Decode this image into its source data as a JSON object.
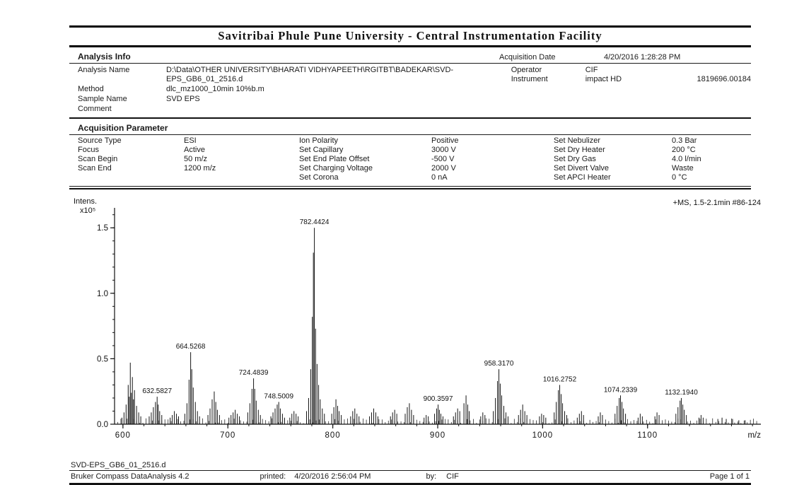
{
  "report": {
    "title": "Savitribai Phule Pune University - Central Instrumentation Facility"
  },
  "analysis_info": {
    "heading": "Analysis Info",
    "acquisition_date_label": "Acquisition Date",
    "acquisition_date_value": "4/20/2016 1:28:28 PM",
    "rows": [
      {
        "label": "Analysis Name",
        "value": "D:\\Data\\OTHER UNIVERSITY\\BHARATI VIDHYAPEETH\\RGITBT\\BADEKAR\\SVD-EPS_GB6_01_2516.d"
      },
      {
        "label": "Method",
        "value": "dlc_mz1000_10min 10%b.m"
      },
      {
        "label": "Sample Name",
        "value": "SVD EPS"
      },
      {
        "label": "Comment",
        "value": ""
      }
    ],
    "operator_label": "Operator",
    "operator_value": "CIF",
    "instrument_label": "Instrument",
    "instrument_value": "impact HD",
    "instrument_serial": "1819696.00184"
  },
  "acquisition": {
    "heading": "Acquisition Parameter",
    "columns": [
      {
        "rows": [
          {
            "label": "Source Type",
            "value": "ESI"
          },
          {
            "label": "Focus",
            "value": "Active"
          },
          {
            "label": "Scan Begin",
            "value": "50 m/z"
          },
          {
            "label": "Scan End",
            "value": "1200 m/z"
          }
        ]
      },
      {
        "rows": [
          {
            "label": "Ion Polarity",
            "value": "Positive"
          },
          {
            "label": "Set Capillary",
            "value": "3000 V"
          },
          {
            "label": "Set End Plate Offset",
            "value": "-500 V"
          },
          {
            "label": "Set Charging Voltage",
            "value": "2000 V"
          },
          {
            "label": "Set Corona",
            "value": "0 nA"
          }
        ]
      },
      {
        "rows": [
          {
            "label": "Set Nebulizer",
            "value": "0.3 Bar"
          },
          {
            "label": "Set Dry Heater",
            "value": "200 °C"
          },
          {
            "label": "Set Dry Gas",
            "value": "4.0 l/min"
          },
          {
            "label": "Set Divert Valve",
            "value": "Waste"
          },
          {
            "label": "Set APCI Heater",
            "value": "0 °C"
          }
        ]
      }
    ]
  },
  "chart_data": {
    "type": "bar",
    "subtype": "mass-spectrum-sticks",
    "title": "",
    "xlabel": "m/z",
    "ylabel": "Intens.",
    "y_scale_label": "x10⁵",
    "annotation": "+MS, 1.5-2.1min #86-124",
    "xlim": [
      592,
      1208
    ],
    "ylim": [
      0,
      1.62
    ],
    "x_ticks": [
      600,
      700,
      800,
      900,
      1000,
      1100
    ],
    "y_ticks": [
      0.0,
      0.5,
      1.0,
      1.5
    ],
    "grid": false,
    "legend": false,
    "labeled_peaks": [
      {
        "mz": 632.58,
        "intensity": 0.21,
        "label": "632.5827"
      },
      {
        "mz": 664.53,
        "intensity": 0.55,
        "label": "664.5268"
      },
      {
        "mz": 724.48,
        "intensity": 0.35,
        "label": "724.4839"
      },
      {
        "mz": 748.5,
        "intensity": 0.17,
        "label": "748.5009"
      },
      {
        "mz": 782.44,
        "intensity": 1.5,
        "label": "782.4424"
      },
      {
        "mz": 900.36,
        "intensity": 0.15,
        "label": "900.3597"
      },
      {
        "mz": 958.32,
        "intensity": 0.42,
        "label": "958.3170"
      },
      {
        "mz": 1016.28,
        "intensity": 0.3,
        "label": "1016.2752"
      },
      {
        "mz": 1074.23,
        "intensity": 0.22,
        "label": "1074.2339"
      },
      {
        "mz": 1132.19,
        "intensity": 0.2,
        "label": "1132.1940"
      }
    ],
    "peaks": [
      [
        599,
        0.05
      ],
      [
        601,
        0.09
      ],
      [
        603,
        0.15
      ],
      [
        605,
        0.3
      ],
      [
        606,
        0.21
      ],
      [
        607,
        0.47
      ],
      [
        608,
        0.24
      ],
      [
        609,
        0.36
      ],
      [
        610,
        0.19
      ],
      [
        611,
        0.26
      ],
      [
        613,
        0.14
      ],
      [
        615,
        0.09
      ],
      [
        617,
        0.06
      ],
      [
        625,
        0.06
      ],
      [
        627,
        0.09
      ],
      [
        629,
        0.13
      ],
      [
        631,
        0.17
      ],
      [
        632.58,
        0.21
      ],
      [
        633.6,
        0.15
      ],
      [
        635,
        0.1
      ],
      [
        637,
        0.07
      ],
      [
        645,
        0.05
      ],
      [
        647,
        0.07
      ],
      [
        649,
        0.1
      ],
      [
        651,
        0.08
      ],
      [
        653,
        0.06
      ],
      [
        659,
        0.08
      ],
      [
        661,
        0.16
      ],
      [
        663,
        0.34
      ],
      [
        664.53,
        0.55
      ],
      [
        665.6,
        0.42
      ],
      [
        667,
        0.28
      ],
      [
        669,
        0.17
      ],
      [
        671,
        0.1
      ],
      [
        673,
        0.06
      ],
      [
        681,
        0.07
      ],
      [
        683,
        0.12
      ],
      [
        685,
        0.19
      ],
      [
        687,
        0.25
      ],
      [
        688.5,
        0.17
      ],
      [
        690,
        0.11
      ],
      [
        692,
        0.07
      ],
      [
        701,
        0.05
      ],
      [
        703,
        0.07
      ],
      [
        705,
        0.09
      ],
      [
        707,
        0.11
      ],
      [
        709,
        0.08
      ],
      [
        711,
        0.06
      ],
      [
        719,
        0.09
      ],
      [
        721,
        0.16
      ],
      [
        723,
        0.27
      ],
      [
        724.48,
        0.35
      ],
      [
        725.6,
        0.27
      ],
      [
        727,
        0.18
      ],
      [
        729,
        0.11
      ],
      [
        731,
        0.07
      ],
      [
        741,
        0.06
      ],
      [
        743,
        0.09
      ],
      [
        745,
        0.12
      ],
      [
        747,
        0.15
      ],
      [
        748.5,
        0.17
      ],
      [
        750,
        0.12
      ],
      [
        752,
        0.08
      ],
      [
        754,
        0.05
      ],
      [
        759,
        0.05
      ],
      [
        761,
        0.08
      ],
      [
        763,
        0.1
      ],
      [
        765,
        0.08
      ],
      [
        767,
        0.06
      ],
      [
        775,
        0.1
      ],
      [
        777,
        0.2
      ],
      [
        779,
        0.42
      ],
      [
        780.5,
        0.82
      ],
      [
        781.5,
        1.31
      ],
      [
        782.44,
        1.5
      ],
      [
        783.6,
        0.73
      ],
      [
        785,
        0.46
      ],
      [
        786.5,
        0.3
      ],
      [
        788,
        0.19
      ],
      [
        790,
        0.12
      ],
      [
        792,
        0.08
      ],
      [
        799,
        0.08
      ],
      [
        801,
        0.13
      ],
      [
        803,
        0.19
      ],
      [
        804.6,
        0.14
      ],
      [
        806,
        0.1
      ],
      [
        808,
        0.07
      ],
      [
        817,
        0.06
      ],
      [
        819,
        0.1
      ],
      [
        821,
        0.12
      ],
      [
        823,
        0.08
      ],
      [
        825,
        0.06
      ],
      [
        835,
        0.06
      ],
      [
        837,
        0.09
      ],
      [
        839,
        0.12
      ],
      [
        841,
        0.09
      ],
      [
        843,
        0.06
      ],
      [
        855,
        0.06
      ],
      [
        857,
        0.09
      ],
      [
        859,
        0.11
      ],
      [
        861,
        0.08
      ],
      [
        869,
        0.08
      ],
      [
        871,
        0.13
      ],
      [
        873,
        0.16
      ],
      [
        875,
        0.11
      ],
      [
        877,
        0.07
      ],
      [
        887,
        0.05
      ],
      [
        889,
        0.07
      ],
      [
        891,
        0.06
      ],
      [
        897,
        0.08
      ],
      [
        899,
        0.12
      ],
      [
        900.36,
        0.15
      ],
      [
        901.6,
        0.11
      ],
      [
        903,
        0.08
      ],
      [
        905,
        0.06
      ],
      [
        915,
        0.06
      ],
      [
        917,
        0.09
      ],
      [
        919,
        0.12
      ],
      [
        921,
        0.1
      ],
      [
        925,
        0.16
      ],
      [
        927,
        0.22
      ],
      [
        928.6,
        0.15
      ],
      [
        930,
        0.1
      ],
      [
        941,
        0.06
      ],
      [
        943,
        0.09
      ],
      [
        945,
        0.07
      ],
      [
        953,
        0.1
      ],
      [
        955,
        0.2
      ],
      [
        957,
        0.33
      ],
      [
        958.32,
        0.42
      ],
      [
        959.6,
        0.31
      ],
      [
        961,
        0.22
      ],
      [
        963,
        0.14
      ],
      [
        965,
        0.09
      ],
      [
        967,
        0.06
      ],
      [
        977,
        0.07
      ],
      [
        979,
        0.11
      ],
      [
        981,
        0.15
      ],
      [
        983,
        0.1
      ],
      [
        985,
        0.07
      ],
      [
        997,
        0.06
      ],
      [
        999,
        0.08
      ],
      [
        1001,
        0.07
      ],
      [
        1003,
        0.05
      ],
      [
        1011,
        0.09
      ],
      [
        1013,
        0.17
      ],
      [
        1015,
        0.26
      ],
      [
        1016.28,
        0.3
      ],
      [
        1017.6,
        0.23
      ],
      [
        1019,
        0.16
      ],
      [
        1021,
        0.1
      ],
      [
        1023,
        0.07
      ],
      [
        1033,
        0.05
      ],
      [
        1035,
        0.08
      ],
      [
        1037,
        0.1
      ],
      [
        1039,
        0.07
      ],
      [
        1053,
        0.06
      ],
      [
        1055,
        0.09
      ],
      [
        1057,
        0.07
      ],
      [
        1069,
        0.08
      ],
      [
        1071,
        0.14
      ],
      [
        1073,
        0.2
      ],
      [
        1074.23,
        0.22
      ],
      [
        1075.6,
        0.17
      ],
      [
        1077,
        0.12
      ],
      [
        1079,
        0.08
      ],
      [
        1091,
        0.05
      ],
      [
        1093,
        0.08
      ],
      [
        1095,
        0.06
      ],
      [
        1107,
        0.06
      ],
      [
        1109,
        0.09
      ],
      [
        1111,
        0.07
      ],
      [
        1127,
        0.08
      ],
      [
        1129,
        0.13
      ],
      [
        1131,
        0.18
      ],
      [
        1132.19,
        0.2
      ],
      [
        1133.6,
        0.15
      ],
      [
        1135,
        0.11
      ],
      [
        1137,
        0.07
      ],
      [
        1149,
        0.05
      ],
      [
        1151,
        0.07
      ],
      [
        1153,
        0.05
      ],
      [
        1167,
        0.04
      ],
      [
        1171,
        0.05
      ],
      [
        1175,
        0.04
      ],
      [
        1181,
        0.04
      ],
      [
        1187,
        0.03
      ],
      [
        1193,
        0.03
      ]
    ],
    "noise": {
      "seed": 7,
      "step": 3,
      "min": 0.008,
      "max": 0.045
    }
  },
  "footer": {
    "file_name": "SVD-EPS_GB6_01_2516.d",
    "software": "Bruker Compass DataAnalysis 4.2",
    "printed_label": "printed:",
    "printed_value": "4/20/2016 2:56:04 PM",
    "by_label": "by:",
    "by_value": "CIF",
    "page": "Page 1 of 1"
  }
}
